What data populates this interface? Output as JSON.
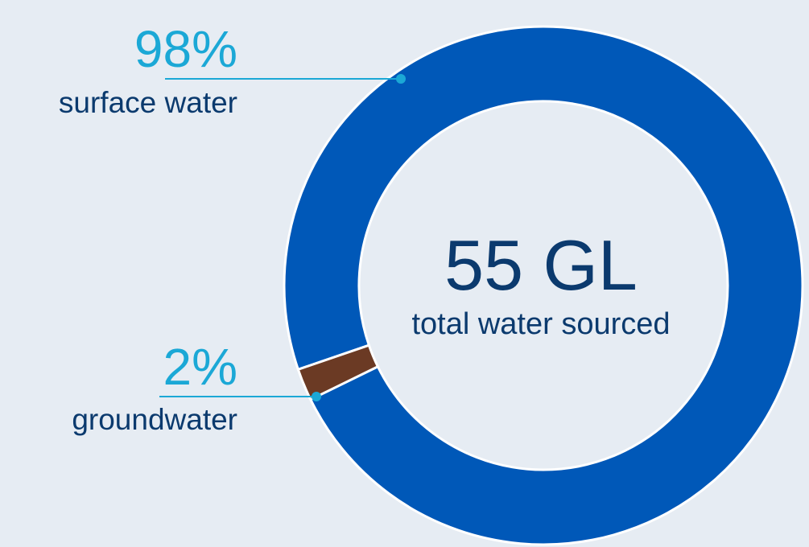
{
  "chart_data": {
    "type": "pie",
    "variant": "donut",
    "categories": [
      "surface water",
      "groundwater"
    ],
    "values": [
      98,
      2
    ],
    "value_labels": [
      "98%",
      "2%"
    ],
    "center": {
      "value": "55 GL",
      "caption": "total water sourced"
    },
    "colors": {
      "surface water": "#0058b8",
      "groundwater": "#6b3a24",
      "background": "#e6ecf3",
      "callout": "#1ba8d6",
      "text": "#0b3a6e"
    }
  }
}
